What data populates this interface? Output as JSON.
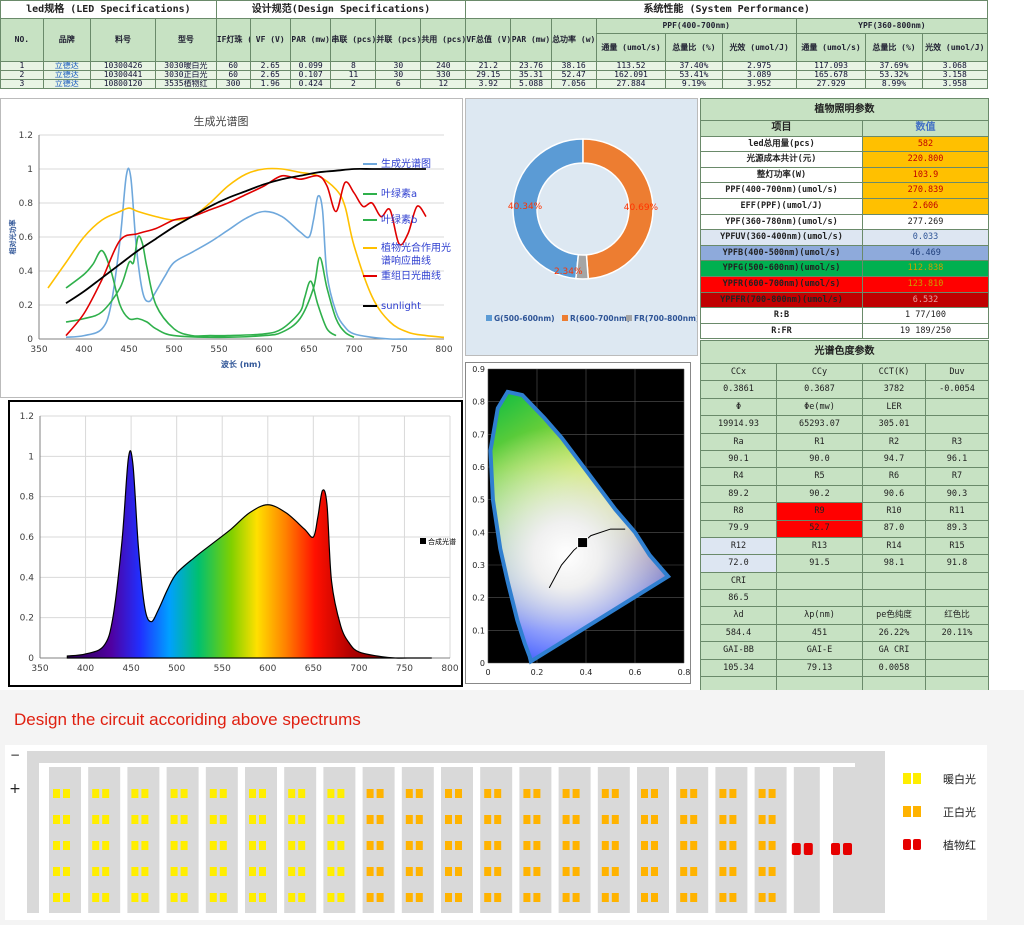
{
  "spec_table": {
    "h1": [
      "led规格 (LED Specifications)",
      "设计规范(Design Specifications)",
      "系统性能 (System Performance)"
    ],
    "ppf_group": "PPF(400-700nm)",
    "ypf_group": "YPF(360-800nm)",
    "cols": [
      "NO.",
      "品牌",
      "料号",
      "型号",
      "IF灯珠 (mA)",
      "VF (V)",
      "PAR (mw)",
      "串联 (pcs)",
      "并联 (pcs)",
      "共用 (pcs)",
      "VF总值 (V)",
      "PAR (mw)",
      "总功率 (w)"
    ],
    "sub": [
      "通量 (umol/s)",
      "总量比 (%)",
      "光效 (umol/J)",
      "通量 (umol/s)",
      "总量比 (%)",
      "光效 (umol/J)"
    ],
    "rows": [
      [
        "1",
        "立德达",
        "10300426",
        "3030暖白光",
        "60",
        "2.65",
        "0.099",
        "8",
        "30",
        "240",
        "21.2",
        "23.76",
        "38.16",
        "113.52",
        "37.40%",
        "2.975",
        "117.093",
        "37.69%",
        "3.068"
      ],
      [
        "2",
        "立德达",
        "10300441",
        "3030正白光",
        "60",
        "2.65",
        "0.107",
        "11",
        "30",
        "330",
        "29.15",
        "35.31",
        "52.47",
        "162.091",
        "53.41%",
        "3.089",
        "165.678",
        "53.32%",
        "3.158"
      ],
      [
        "3",
        "立德达",
        "10800120",
        "3535植物红",
        "300",
        "1.96",
        "0.424",
        "2",
        "6",
        "12",
        "3.92",
        "5.088",
        "7.056",
        "27.884",
        "9.19%",
        "3.952",
        "27.929",
        "8.99%",
        "3.958"
      ]
    ]
  },
  "plant_table": {
    "title": "植物照明参数",
    "h_item": "项目",
    "h_value": "数值",
    "rows": [
      [
        "led总用量(pcs)",
        "582"
      ],
      [
        "光源成本共计(元)",
        "220.800"
      ],
      [
        "整灯功率(W)",
        "103.9"
      ],
      [
        "PPF(400-700nm)(umol/s)",
        "270.839"
      ],
      [
        "EFF(PPF)(umol/J)",
        "2.606"
      ],
      [
        "YPF(360-780nm)(umol/s)",
        "277.269"
      ],
      [
        "YPFUV(360-400nm)(umol/s)",
        "0.033"
      ],
      [
        "YPFB(400-500nm)(umol/s)",
        "46.469"
      ],
      [
        "YPFG(500-600nm)(umol/s)",
        "112.838"
      ],
      [
        "YPFR(600-700nm)(umol/s)",
        "123.810"
      ],
      [
        "YPFFR(700-800nm)(umol/s)",
        "6.532"
      ],
      [
        "R:B",
        "1  77/100"
      ],
      [
        "R:FR",
        "19 189/250"
      ]
    ],
    "colors": {
      "value_bg": "#ffc000",
      "value_text": "#c00000",
      "uv_bg": "#dde6f2",
      "b_bg": "#8eaadb",
      "g_bg": "#00b050",
      "r_bg": "#ff0000",
      "fr_bg": "#c00000"
    }
  },
  "color_table": {
    "title": "光谱色度参数",
    "rows": [
      [
        "CCx",
        "CCy",
        "CCT(K)",
        "Duv"
      ],
      [
        "0.3861",
        "0.3687",
        "3782",
        "-0.0054"
      ],
      [
        "Φ",
        "Φe(mw)",
        "LER",
        ""
      ],
      [
        "19914.93",
        "65293.07",
        "305.01",
        ""
      ],
      [
        "Ra",
        "R1",
        "R2",
        "R3"
      ],
      [
        "90.1",
        "90.0",
        "94.7",
        "96.1"
      ],
      [
        "R4",
        "R5",
        "R6",
        "R7"
      ],
      [
        "89.2",
        "90.2",
        "90.6",
        "90.3"
      ],
      [
        "R8",
        "R9",
        "R10",
        "R11"
      ],
      [
        "79.9",
        "52.7",
        "87.0",
        "89.3"
      ],
      [
        "R12",
        "R13",
        "R14",
        "R15"
      ],
      [
        "72.0",
        "91.5",
        "98.1",
        "91.8"
      ],
      [
        "CRI",
        "",
        "",
        ""
      ],
      [
        "86.5",
        "",
        "",
        ""
      ],
      [
        "λd",
        "λp(nm)",
        "pe色纯度",
        "红色比"
      ],
      [
        "584.4",
        "451",
        "26.22%",
        "20.11%"
      ],
      [
        "GAI-BB",
        "GAI-E",
        "GA CRI",
        ""
      ],
      [
        "105.34",
        "79.13",
        "0.0058",
        ""
      ],
      [
        "",
        "",
        "",
        ""
      ]
    ],
    "highlight_r9": "#ff0000",
    "highlight_r12": "#dde6f2"
  },
  "chart_data": [
    {
      "type": "line",
      "title": "生成光谱图",
      "xlabel": "波长 (nm)",
      "ylabel": "相对光功率",
      "xlim": [
        350,
        800
      ],
      "ylim": [
        0,
        1.2
      ],
      "xticks": [
        "350",
        "400",
        "450",
        "500",
        "550",
        "600",
        "650",
        "700",
        "750",
        "800"
      ],
      "yticks": [
        "0",
        "0.2",
        "0.4",
        "0.6",
        "0.8",
        "1",
        "1.2"
      ],
      "grid": true,
      "legend": "right",
      "series": [
        {
          "name": "生成光谱图",
          "color": "#6fa8dc",
          "x": [
            380,
            400,
            420,
            430,
            440,
            447,
            452,
            458,
            465,
            472,
            480,
            490,
            500,
            520,
            540,
            560,
            580,
            600,
            620,
            640,
            650,
            655,
            660,
            665,
            670,
            680,
            690,
            700,
            720,
            740,
            760,
            780
          ],
          "y": [
            0.01,
            0.02,
            0.06,
            0.2,
            0.58,
            0.96,
            0.95,
            0.55,
            0.28,
            0.22,
            0.28,
            0.37,
            0.45,
            0.51,
            0.57,
            0.64,
            0.71,
            0.75,
            0.72,
            0.63,
            0.6,
            0.7,
            0.84,
            0.76,
            0.38,
            0.16,
            0.07,
            0.03,
            0.01,
            0,
            0,
            0
          ]
        },
        {
          "name": "叶绿素a",
          "color": "#2fb04b",
          "x": [
            380,
            400,
            410,
            420,
            430,
            440,
            450,
            460,
            470,
            480,
            500,
            550,
            600,
            620,
            640,
            655,
            662,
            670,
            680,
            690,
            700
          ],
          "y": [
            0.3,
            0.38,
            0.44,
            0.52,
            0.4,
            0.2,
            0.12,
            0.12,
            0.1,
            0.06,
            0.02,
            0.01,
            0.02,
            0.04,
            0.12,
            0.3,
            0.48,
            0.3,
            0.12,
            0.04,
            0.01
          ]
        },
        {
          "name": "叶绿素b",
          "color": "#2fb04b",
          "x": [
            380,
            400,
            420,
            440,
            450,
            455,
            460,
            465,
            470,
            480,
            500,
            520,
            540,
            560,
            600,
            620,
            640,
            645,
            652,
            660,
            670,
            680
          ],
          "y": [
            0.1,
            0.12,
            0.16,
            0.3,
            0.45,
            0.45,
            0.6,
            0.56,
            0.42,
            0.2,
            0.06,
            0.02,
            0.02,
            0.02,
            0.03,
            0.06,
            0.16,
            0.24,
            0.34,
            0.2,
            0.06,
            0.02
          ]
        },
        {
          "name": "植物光合作用光谱响应曲线",
          "color": "#ffc000",
          "x": [
            360,
            380,
            400,
            420,
            440,
            450,
            460,
            480,
            500,
            520,
            540,
            560,
            580,
            600,
            620,
            640,
            660,
            680,
            690,
            700,
            720,
            740,
            760,
            780,
            800
          ],
          "y": [
            0.3,
            0.45,
            0.6,
            0.7,
            0.75,
            0.77,
            0.75,
            0.72,
            0.7,
            0.72,
            0.8,
            0.9,
            0.97,
            1.0,
            1.0,
            0.98,
            0.96,
            0.88,
            0.78,
            0.55,
            0.25,
            0.1,
            0.04,
            0.02,
            0.01
          ]
        },
        {
          "name": "重组日光曲线",
          "color": "#e00000",
          "x": [
            380,
            400,
            420,
            440,
            460,
            480,
            500,
            520,
            540,
            560,
            580,
            600,
            620,
            640,
            660,
            670,
            680,
            690,
            700,
            710,
            720,
            730,
            740,
            750,
            760,
            770,
            780
          ],
          "y": [
            0.02,
            0.15,
            0.35,
            0.58,
            0.62,
            0.65,
            0.7,
            0.72,
            0.76,
            0.8,
            0.85,
            0.9,
            0.96,
            0.94,
            0.96,
            0.9,
            0.75,
            0.92,
            0.86,
            0.78,
            0.8,
            0.72,
            0.76,
            0.56,
            0.62,
            0.78,
            0.72
          ]
        },
        {
          "name": "sunlight",
          "color": "#000000",
          "x": [
            380,
            400,
            420,
            440,
            460,
            480,
            500,
            520,
            540,
            560,
            580,
            600,
            620,
            640,
            660,
            680,
            700,
            720,
            740,
            760,
            780
          ],
          "y": [
            0.21,
            0.28,
            0.36,
            0.44,
            0.52,
            0.59,
            0.66,
            0.72,
            0.78,
            0.83,
            0.87,
            0.91,
            0.94,
            0.96,
            0.98,
            0.99,
            1.0,
            1.0,
            1.0,
            1.0,
            1.0
          ]
        }
      ]
    },
    {
      "type": "pie",
      "slices": [
        {
          "label": "G(500-600nm)",
          "value": 40.34,
          "text": "40.34%",
          "color": "#5b9bd5"
        },
        {
          "label": "R(600-700nm)",
          "value": 40.69,
          "text": "40.69%",
          "color": "#ed7d31"
        },
        {
          "label": "FR(700-800nm)",
          "value": 2.34,
          "text": "2.34%",
          "color": "#a5a5a5"
        }
      ]
    },
    {
      "type": "area",
      "legend_label": "合成光谱",
      "xlim": [
        350,
        800
      ],
      "ylim": [
        0,
        1.2
      ],
      "xticks": [
        "350",
        "400",
        "450",
        "500",
        "550",
        "600",
        "650",
        "700",
        "750",
        "800"
      ],
      "yticks": [
        "0",
        "0.2",
        "0.4",
        "0.6",
        "0.8",
        "1",
        "1.2"
      ],
      "x": [
        380,
        400,
        420,
        430,
        440,
        447,
        452,
        458,
        465,
        472,
        480,
        490,
        500,
        520,
        540,
        560,
        580,
        600,
        620,
        640,
        650,
        655,
        660,
        665,
        670,
        680,
        690,
        700,
        720,
        740,
        760,
        780
      ],
      "y": [
        0.01,
        0.02,
        0.06,
        0.2,
        0.58,
        0.99,
        0.96,
        0.55,
        0.25,
        0.18,
        0.24,
        0.34,
        0.42,
        0.5,
        0.57,
        0.64,
        0.72,
        0.76,
        0.72,
        0.64,
        0.6,
        0.7,
        0.83,
        0.76,
        0.38,
        0.16,
        0.07,
        0.03,
        0.01,
        0,
        0,
        0
      ]
    },
    {
      "type": "scatter",
      "name": "CIE 1931",
      "xlim": [
        0,
        0.8
      ],
      "ylim": [
        0,
        0.9
      ],
      "xticks": [
        "0",
        "0.2",
        "0.4",
        "0.6",
        "0.8"
      ],
      "yticks": [
        "0",
        "0.1",
        "0.2",
        "0.3",
        "0.4",
        "0.5",
        "0.6",
        "0.7",
        "0.8",
        "0.9"
      ],
      "x": [
        0.3861
      ],
      "y": [
        0.3687
      ]
    }
  ],
  "circuit": {
    "title": "Design the circuit accoriding above spectrums",
    "minus": "−",
    "plus": "+",
    "legend": [
      {
        "label": "暖白光",
        "color": "#ffee00"
      },
      {
        "label": "正白光",
        "color": "#ffb300"
      },
      {
        "label": "植物红",
        "color": "#e60000"
      }
    ],
    "bg": "#d9d9d9"
  }
}
